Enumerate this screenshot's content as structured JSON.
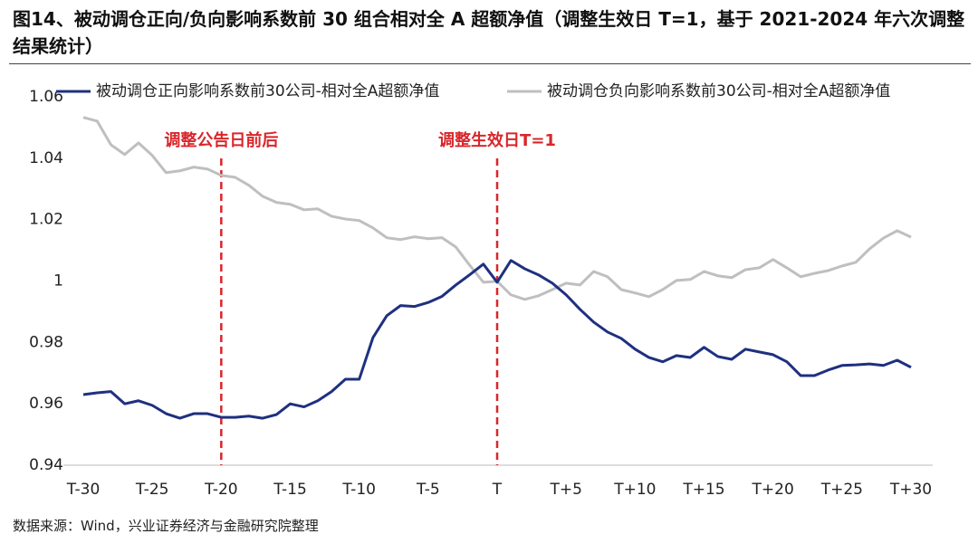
{
  "chart_data": {
    "type": "line",
    "title": "图14、被动调仓正向/负向影响系数前 30 组合相对全 A 超额净值（调整生效日 T=1，基于 2021-2024 年六次调整结果统计）",
    "source": "数据来源：Wind，兴业证券经济与金融研究院整理",
    "categories": [
      "T-30",
      null,
      null,
      null,
      null,
      "T-25",
      null,
      null,
      null,
      null,
      "T-20",
      null,
      null,
      null,
      null,
      "T-15",
      null,
      null,
      null,
      null,
      "T-10",
      null,
      null,
      null,
      null,
      "T-5",
      null,
      null,
      null,
      null,
      "T",
      null,
      null,
      null,
      null,
      "T+5",
      null,
      null,
      null,
      null,
      "T+10",
      null,
      null,
      null,
      null,
      "T+15",
      null,
      null,
      null,
      null,
      "T+20",
      null,
      null,
      null,
      null,
      "T+25",
      null,
      null,
      null,
      null,
      "T+30"
    ],
    "series": [
      {
        "name": "被动调仓正向影响系数前30公司-相对全A超额净值",
        "color": "#1f3080",
        "values": [
          0.963,
          0.9636,
          0.964,
          0.96,
          0.961,
          0.9595,
          0.9568,
          0.9553,
          0.9568,
          0.9568,
          0.9556,
          0.9556,
          0.956,
          0.9553,
          0.9565,
          0.96,
          0.959,
          0.961,
          0.964,
          0.968,
          0.968,
          0.9816,
          0.9887,
          0.992,
          0.9917,
          0.993,
          0.995,
          0.9987,
          1.002,
          1.0055,
          0.9996,
          1.0067,
          1.004,
          1.002,
          0.9993,
          0.9955,
          0.9908,
          0.9866,
          0.9834,
          0.9813,
          0.9778,
          0.9751,
          0.9737,
          0.9757,
          0.9751,
          0.9784,
          0.9754,
          0.9745,
          0.9778,
          0.9769,
          0.976,
          0.9737,
          0.9692,
          0.9692,
          0.971,
          0.9725,
          0.9727,
          0.973,
          0.9725,
          0.9742,
          0.9719
        ]
      },
      {
        "name": "被动调仓负向影响系数前30公司-相对全A超额净值",
        "color": "#bfbfbf",
        "values": [
          1.0533,
          1.0521,
          1.0444,
          1.0412,
          1.045,
          1.0409,
          1.0353,
          1.0359,
          1.0371,
          1.0365,
          1.0344,
          1.0338,
          1.0312,
          1.0276,
          1.0256,
          1.025,
          1.0232,
          1.0235,
          1.0211,
          1.0202,
          1.0197,
          1.0173,
          1.0141,
          1.0135,
          1.0144,
          1.0138,
          1.0141,
          1.0111,
          1.0052,
          0.9996,
          0.9999,
          0.9955,
          0.994,
          0.9952,
          0.9972,
          0.9993,
          0.9987,
          1.0031,
          1.0014,
          0.9972,
          0.9961,
          0.9949,
          0.9972,
          1.0002,
          1.0005,
          1.0031,
          1.0017,
          1.0011,
          1.0037,
          1.0043,
          1.007,
          1.0043,
          1.0014,
          1.0025,
          1.0034,
          1.0049,
          1.0061,
          1.0105,
          1.014,
          1.0164,
          1.0143
        ]
      }
    ],
    "annotations": [
      {
        "text": "调整公告日前后",
        "category": "T-20",
        "color": "#d9262b"
      },
      {
        "text": "调整生效日T=1",
        "category": "T",
        "color": "#d9262b"
      }
    ],
    "ylim": [
      0.94,
      1.06
    ],
    "yticks": [
      0.94,
      0.96,
      0.98,
      1,
      1.02,
      1.04,
      1.06
    ],
    "grid": false,
    "legend": "top"
  }
}
